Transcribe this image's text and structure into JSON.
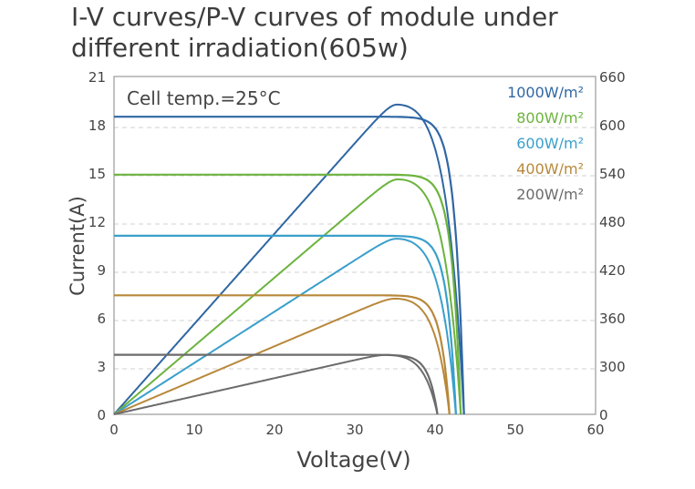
{
  "title_line1": "I-V curves/P-V curves of module under",
  "title_line2": "different irradiation(605w)",
  "chart_data": {
    "type": "line",
    "title": "I-V curves/P-V curves of module under different irradiation(605w)",
    "xlabel": "Voltage(V)",
    "ylabel": "Current(A)",
    "y2label": "",
    "annotation": "Cell temp.=25°C",
    "xlim": [
      0,
      60
    ],
    "ylim": [
      0,
      21
    ],
    "y2lim": [
      0,
      660
    ],
    "x_ticks": [
      "0",
      "10",
      "20",
      "30",
      "40",
      "50",
      "60"
    ],
    "y_ticks": [
      "0",
      "3",
      "6",
      "9",
      "12",
      "15",
      "18",
      "21"
    ],
    "y2_ticks": [
      "0",
      "300",
      "360",
      "420",
      "480",
      "540",
      "600",
      "660"
    ],
    "legend_position": "top-right",
    "series": [
      {
        "name": "1000W/m²",
        "color": "#2f67a3",
        "isc": 18.5,
        "voc": 43.6,
        "vmp": 35.2,
        "pmax": 605
      },
      {
        "name": "800W/m²",
        "color": "#6cb33e",
        "isc": 14.9,
        "voc": 43.2,
        "vmp": 35.3,
        "pmax": 459
      },
      {
        "name": "600W/m²",
        "color": "#3a9fcb",
        "isc": 11.1,
        "voc": 42.6,
        "vmp": 35.2,
        "pmax": 343
      },
      {
        "name": "400W/m²",
        "color": "#b8883a",
        "isc": 7.4,
        "voc": 41.8,
        "vmp": 35.0,
        "pmax": 226
      },
      {
        "name": "200W/m²",
        "color": "#6b6b6b",
        "isc": 3.7,
        "voc": 40.3,
        "vmp": 33.8,
        "pmax": 116
      }
    ]
  }
}
